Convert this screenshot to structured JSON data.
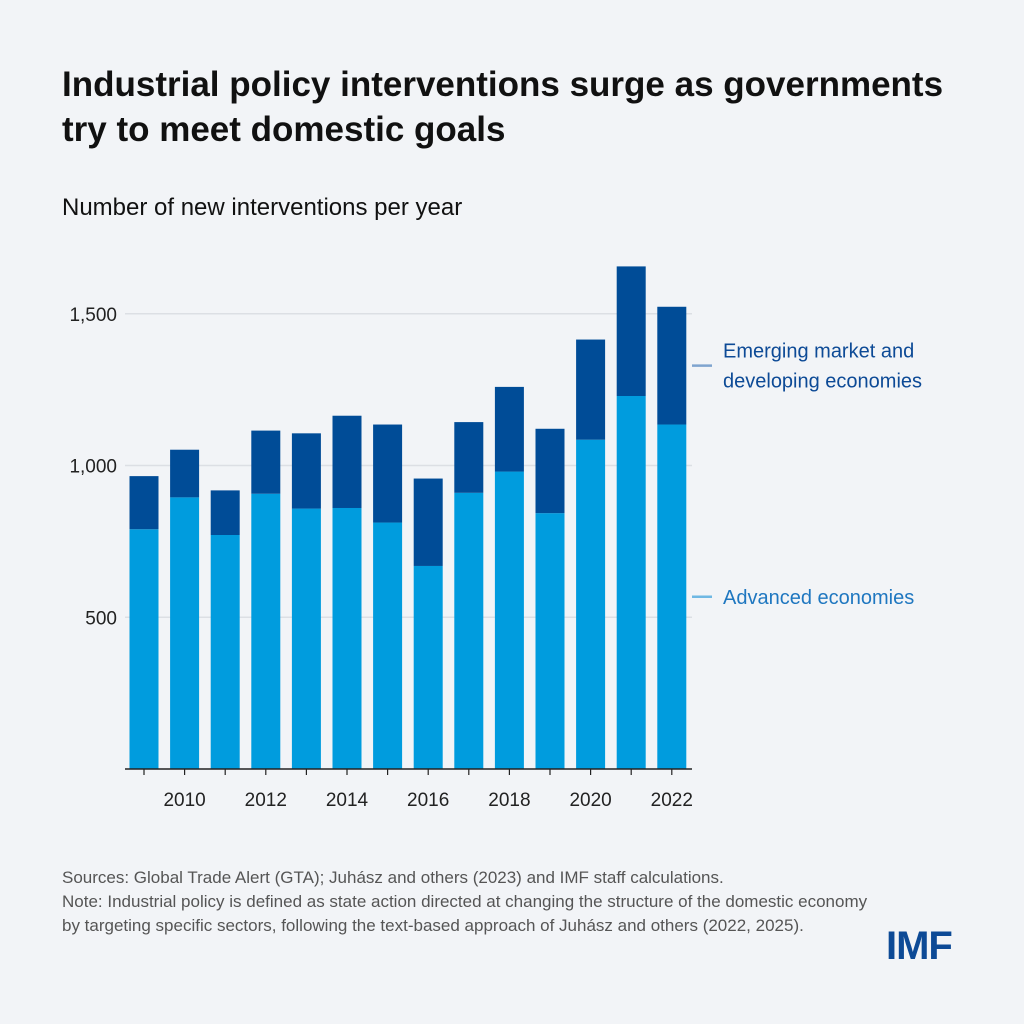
{
  "title": "Industrial policy interventions surge as governments try to meet domestic goals",
  "subtitle": "Number of new interventions per year",
  "footer": {
    "sources": "Sources: Global Trade Alert (GTA); Juhász and others (2023) and IMF staff calculations.",
    "note": "Note: Industrial policy is defined as state action directed at changing the structure of the domestic economy by targeting specific sectors, following the text-based approach of Juhász and others (2022, 2025)."
  },
  "logo": "IMF",
  "chart_data": {
    "type": "bar",
    "stacked": true,
    "title": "Number of new interventions per year",
    "categories": [
      2009,
      2010,
      2011,
      2012,
      2013,
      2014,
      2015,
      2016,
      2017,
      2018,
      2019,
      2020,
      2021,
      2022
    ],
    "series": [
      {
        "name": "Advanced economies",
        "color": "#009cde",
        "values": [
          790,
          895,
          771,
          907,
          858,
          860,
          812,
          669,
          910,
          980,
          843,
          1085,
          1229,
          1135
        ]
      },
      {
        "name": "Emerging market and developing economies",
        "color": "#004c97",
        "values": [
          175,
          157,
          147,
          208,
          248,
          304,
          323,
          288,
          233,
          279,
          278,
          330,
          427,
          388
        ]
      }
    ],
    "totals": [
      965,
      1052,
      918,
      1115,
      1106,
      1164,
      1135,
      957,
      1143,
      1259,
      1121,
      1415,
      1656,
      1523
    ],
    "yticks": [
      {
        "v": 500,
        "label": "500"
      },
      {
        "v": 1000,
        "label": "1,000"
      },
      {
        "v": 1500,
        "label": "1,500"
      }
    ],
    "xticklabels": [
      "2010",
      "2012",
      "2014",
      "2016",
      "2018",
      "2020",
      "2022"
    ],
    "legend_labels": [
      [
        "Emerging market and",
        "developing economies"
      ],
      [
        "Advanced economies"
      ]
    ],
    "ylim": [
      0,
      1700
    ],
    "grid": true,
    "legend": "right (direct labels)"
  }
}
